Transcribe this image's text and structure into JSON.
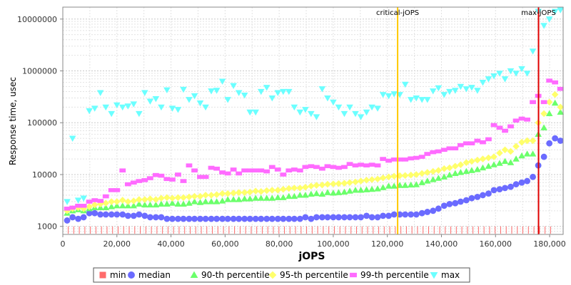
{
  "chart_data": {
    "type": "scatter",
    "xlabel": "jOPS",
    "ylabel": "Response time, usec",
    "xlim": [
      0,
      185000
    ],
    "ylim": [
      700,
      17000000
    ],
    "y_scale": "log",
    "grid": true,
    "legend_position": "bottom",
    "x_ticks": [
      0,
      20000,
      40000,
      60000,
      80000,
      100000,
      120000,
      140000,
      160000,
      180000
    ],
    "x_tick_labels": [
      "0",
      "20,000",
      "40,000",
      "60,000",
      "80,000",
      "100,000",
      "120,000",
      "140,000",
      "160,000",
      "180,000"
    ],
    "y_ticks": [
      1000,
      10000,
      100000,
      1000000,
      10000000
    ],
    "y_tick_labels": [
      "1000",
      "10000",
      "100000",
      "1000000",
      "10000000"
    ],
    "markers": [
      {
        "name": "critical-jOPS",
        "x": 123800,
        "color": "#ffc800"
      },
      {
        "name": "max-jOPS",
        "x": 175900,
        "color": "#e00000"
      }
    ],
    "colors": {
      "min": "#ff6b6b",
      "median": "#6b6bff",
      "p90": "#6bff6b",
      "p95": "#ffff6b",
      "p99": "#ff6bff",
      "max": "#6bffff"
    },
    "legend": [
      "min",
      "median",
      "90-th percentile",
      "95-th percentile",
      "99-th percentile",
      "max"
    ],
    "series": [
      {
        "name": "min",
        "shape": "square",
        "color": "#ff6b6b",
        "x": [
          2000,
          181000
        ],
        "y": [
          1000,
          1000
        ]
      },
      {
        "name": "median",
        "shape": "circle",
        "color": "#6b6bff",
        "x": [
          1600,
          3600,
          5700,
          7700,
          9800,
          11800,
          13900,
          15900,
          18000,
          20000,
          22100,
          24100,
          26200,
          28200,
          30300,
          32300,
          34400,
          36400,
          38500,
          40500,
          42600,
          44600,
          46700,
          48700,
          50800,
          52800,
          54900,
          56900,
          59000,
          61000,
          63100,
          65100,
          67200,
          69200,
          71300,
          73300,
          75400,
          77400,
          79500,
          81500,
          83600,
          85600,
          87700,
          89700,
          91800,
          93800,
          95900,
          97900,
          100000,
          102000,
          104100,
          106100,
          108200,
          110200,
          112300,
          114300,
          116400,
          118400,
          120500,
          122500,
          124600,
          126600,
          128700,
          130700,
          132800,
          134800,
          136900,
          138900,
          141000,
          143000,
          145100,
          147100,
          149200,
          151200,
          153300,
          155300,
          157400,
          159400,
          161500,
          163500,
          165600,
          167600,
          169700,
          171700,
          173800,
          175800,
          177900,
          179900,
          182000,
          184000
        ],
        "y": [
          1300,
          1500,
          1400,
          1500,
          1800,
          1800,
          1700,
          1700,
          1700,
          1700,
          1700,
          1600,
          1600,
          1700,
          1600,
          1500,
          1500,
          1500,
          1400,
          1400,
          1400,
          1400,
          1400,
          1400,
          1400,
          1400,
          1400,
          1400,
          1400,
          1400,
          1400,
          1400,
          1400,
          1400,
          1400,
          1400,
          1400,
          1400,
          1400,
          1400,
          1400,
          1400,
          1400,
          1500,
          1400,
          1500,
          1500,
          1500,
          1500,
          1500,
          1500,
          1500,
          1500,
          1500,
          1600,
          1500,
          1500,
          1600,
          1600,
          1700,
          1700,
          1700,
          1700,
          1700,
          1800,
          1900,
          2000,
          2200,
          2500,
          2700,
          2800,
          3000,
          3200,
          3500,
          3700,
          4000,
          4300,
          5000,
          5200,
          5500,
          5800,
          6500,
          7000,
          7500,
          9000,
          15000,
          22000,
          40000,
          50000,
          45000
        ]
      },
      {
        "name": "90-th percentile",
        "shape": "triangle-up",
        "color": "#6bff6b",
        "x": [
          1600,
          3600,
          5700,
          7700,
          9800,
          11800,
          13900,
          15900,
          18000,
          20000,
          22100,
          24100,
          26200,
          28200,
          30300,
          32300,
          34400,
          36400,
          38500,
          40500,
          42600,
          44600,
          46700,
          48700,
          50800,
          52800,
          54900,
          56900,
          59000,
          61000,
          63100,
          65100,
          67200,
          69200,
          71300,
          73300,
          75400,
          77400,
          79500,
          81500,
          83600,
          85600,
          87700,
          89700,
          91800,
          93800,
          95900,
          97900,
          100000,
          102000,
          104100,
          106100,
          108200,
          110200,
          112300,
          114300,
          116400,
          118400,
          120500,
          122500,
          124600,
          126600,
          128700,
          130700,
          132800,
          134800,
          136900,
          138900,
          141000,
          143000,
          145100,
          147100,
          149200,
          151200,
          153300,
          155300,
          157400,
          159400,
          161500,
          163500,
          165600,
          167600,
          169700,
          171700,
          173800,
          175800,
          177900,
          179900,
          182000,
          184000
        ],
        "y": [
          1800,
          2000,
          2100,
          2000,
          2200,
          2300,
          2300,
          2300,
          2400,
          2500,
          2500,
          2500,
          2500,
          2700,
          2600,
          2600,
          2600,
          2700,
          2700,
          2800,
          2700,
          2700,
          2800,
          3000,
          2900,
          3000,
          3000,
          3000,
          3100,
          3300,
          3300,
          3300,
          3400,
          3400,
          3500,
          3500,
          3500,
          3500,
          3600,
          3600,
          3800,
          3800,
          4000,
          4000,
          4200,
          4300,
          4200,
          4500,
          4400,
          4500,
          4600,
          4800,
          5000,
          5000,
          5100,
          5200,
          5300,
          5600,
          6000,
          6000,
          6200,
          6200,
          6300,
          6400,
          7000,
          7500,
          8000,
          8500,
          9000,
          9800,
          10500,
          11000,
          11500,
          12000,
          12500,
          13500,
          14500,
          15500,
          16500,
          18000,
          17000,
          20000,
          23000,
          25000,
          25000,
          60000,
          80000,
          150000,
          240000,
          160000
        ]
      },
      {
        "name": "95-th percentile",
        "shape": "diamond",
        "color": "#ffff6b",
        "x": [
          1600,
          3600,
          5700,
          7700,
          9800,
          11800,
          13900,
          15900,
          18000,
          20000,
          22100,
          24100,
          26200,
          28200,
          30300,
          32300,
          34400,
          36400,
          38500,
          40500,
          42600,
          44600,
          46700,
          48700,
          50800,
          52800,
          54900,
          56900,
          59000,
          61000,
          63100,
          65100,
          67200,
          69200,
          71300,
          73300,
          75400,
          77400,
          79500,
          81500,
          83600,
          85600,
          87700,
          89700,
          91800,
          93800,
          95900,
          97900,
          100000,
          102000,
          104100,
          106100,
          108200,
          110200,
          112300,
          114300,
          116400,
          118400,
          120500,
          122500,
          124600,
          126600,
          128700,
          130700,
          132800,
          134800,
          136900,
          138900,
          141000,
          143000,
          145100,
          147100,
          149200,
          151200,
          153300,
          155300,
          157400,
          159400,
          161500,
          163500,
          165600,
          167600,
          169700,
          171700,
          173800,
          175800,
          177900,
          179900,
          182000,
          184000
        ],
        "y": [
          2000,
          2200,
          2300,
          2200,
          2400,
          2600,
          2700,
          2800,
          3000,
          3000,
          3200,
          3000,
          3100,
          3300,
          3300,
          3400,
          3300,
          3500,
          3600,
          3500,
          3600,
          3600,
          3700,
          3800,
          3800,
          4000,
          4000,
          4100,
          4300,
          4300,
          4400,
          4500,
          4500,
          4600,
          4800,
          4700,
          4900,
          5000,
          5000,
          5200,
          5400,
          5500,
          5500,
          5700,
          6000,
          6200,
          6300,
          6500,
          6600,
          6700,
          6800,
          7000,
          7200,
          7500,
          7800,
          8000,
          8200,
          8600,
          9000,
          9300,
          9500,
          9600,
          9800,
          10000,
          10500,
          11000,
          11500,
          12000,
          13000,
          13500,
          14500,
          15500,
          17000,
          18000,
          19000,
          20000,
          21000,
          22000,
          26000,
          30000,
          28000,
          35000,
          42000,
          45000,
          45000,
          100000,
          150000,
          250000,
          350000,
          200000
        ]
      },
      {
        "name": "99-th percentile",
        "shape": "rect",
        "color": "#ff6bff",
        "x": [
          1600,
          3600,
          5700,
          7700,
          9800,
          11800,
          13900,
          15900,
          18000,
          20000,
          22100,
          24100,
          26200,
          28200,
          30300,
          32300,
          34400,
          36400,
          38500,
          40500,
          42600,
          44600,
          46700,
          48700,
          50800,
          52800,
          54900,
          56900,
          59000,
          61000,
          63100,
          65100,
          67200,
          69200,
          71300,
          73300,
          75400,
          77400,
          79500,
          81500,
          83600,
          85600,
          87700,
          89700,
          91800,
          93800,
          95900,
          97900,
          100000,
          102000,
          104100,
          106100,
          108200,
          110200,
          112300,
          114300,
          116400,
          118400,
          120500,
          122500,
          124600,
          126600,
          128700,
          130700,
          132800,
          134800,
          136900,
          138900,
          141000,
          143000,
          145100,
          147100,
          149200,
          151200,
          153300,
          155300,
          157400,
          159400,
          161500,
          163500,
          165600,
          167600,
          169700,
          171700,
          173800,
          175800,
          177900,
          179900,
          182000,
          184000
        ],
        "y": [
          2200,
          2300,
          2500,
          2500,
          3000,
          3200,
          3100,
          3800,
          5000,
          5000,
          12000,
          6500,
          7000,
          7500,
          7800,
          8500,
          9800,
          9500,
          8200,
          8000,
          10000,
          7500,
          15000,
          12000,
          9000,
          9000,
          13500,
          13000,
          11000,
          10500,
          12500,
          10500,
          12000,
          12000,
          12000,
          12000,
          11500,
          14000,
          12500,
          10000,
          12000,
          12500,
          12000,
          14000,
          14500,
          14000,
          13000,
          14500,
          14000,
          13500,
          14000,
          16000,
          15000,
          15500,
          15000,
          15500,
          15000,
          20000,
          18500,
          19500,
          19500,
          19500,
          20500,
          21000,
          22000,
          25000,
          27000,
          28000,
          30000,
          32000,
          32000,
          37000,
          40000,
          40000,
          45000,
          42000,
          48000,
          90000,
          80000,
          70000,
          85000,
          110000,
          120000,
          115000,
          250000,
          330000,
          250000,
          650000,
          600000,
          450000
        ]
      },
      {
        "name": "max",
        "shape": "triangle-down",
        "color": "#6bffff",
        "x": [
          1600,
          3600,
          5700,
          7700,
          9800,
          11800,
          13900,
          15900,
          18000,
          20000,
          22100,
          24100,
          26200,
          28200,
          30300,
          32300,
          34400,
          36400,
          38500,
          40500,
          42600,
          44600,
          46700,
          48700,
          50800,
          52800,
          54900,
          56900,
          59000,
          61000,
          63100,
          65100,
          67200,
          69200,
          71300,
          73300,
          75400,
          77400,
          79500,
          81500,
          83600,
          85600,
          87700,
          89700,
          91800,
          93800,
          95900,
          97900,
          100000,
          102000,
          104100,
          106100,
          108200,
          110200,
          112300,
          114300,
          116400,
          118400,
          120500,
          122500,
          124600,
          126600,
          128700,
          130700,
          132800,
          134800,
          136900,
          138900,
          141000,
          143000,
          145100,
          147100,
          149200,
          151200,
          153300,
          155300,
          157400,
          159400,
          161500,
          163500,
          165600,
          167600,
          169700,
          171700,
          173800,
          175800,
          177900,
          179900,
          182000,
          184000
        ],
        "y": [
          3000,
          50000,
          3200,
          3500,
          170000,
          190000,
          380000,
          200000,
          150000,
          220000,
          200000,
          210000,
          230000,
          150000,
          380000,
          260000,
          290000,
          200000,
          430000,
          190000,
          180000,
          440000,
          280000,
          330000,
          240000,
          200000,
          410000,
          420000,
          630000,
          280000,
          520000,
          380000,
          340000,
          160000,
          160000,
          400000,
          480000,
          300000,
          380000,
          400000,
          400000,
          200000,
          160000,
          180000,
          150000,
          130000,
          450000,
          300000,
          250000,
          200000,
          150000,
          200000,
          150000,
          130000,
          160000,
          200000,
          190000,
          350000,
          330000,
          360000,
          350000,
          550000,
          280000,
          300000,
          280000,
          280000,
          410000,
          470000,
          350000,
          400000,
          420000,
          500000,
          450000,
          480000,
          420000,
          600000,
          700000,
          800000,
          900000,
          700000,
          1000000,
          900000,
          1100000,
          900000,
          2400000,
          14000000,
          7500000,
          10000000,
          14000000,
          15000000
        ]
      }
    ]
  }
}
